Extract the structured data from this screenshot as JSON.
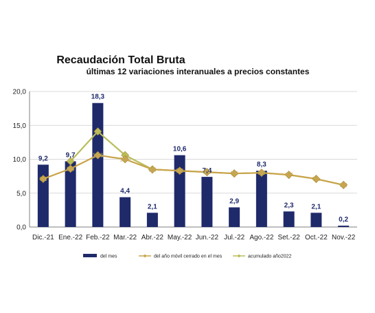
{
  "chart_data": {
    "type": "bar",
    "title": "Recaudación Total Bruta",
    "subtitle": "últimas 12 variaciones interanuales a precios constantes",
    "categories": [
      "Dic.-21",
      "Ene.-22",
      "Feb.-22",
      "Mar.-22",
      "Abr.-22",
      "May.-22",
      "Jun.-22",
      "Jul.-22",
      "Ago.-22",
      "Set.-22",
      "Oct.-22",
      "Nov.-22"
    ],
    "ylim": [
      0,
      20
    ],
    "yticks": [
      "0,0",
      "5,0",
      "10,0",
      "15,0",
      "20,0"
    ],
    "grid": true,
    "legend_position": "bottom",
    "series": [
      {
        "name": "del mes",
        "kind": "bar",
        "color": "#1f2a6b",
        "values": [
          9.2,
          9.7,
          18.3,
          4.4,
          2.1,
          10.6,
          7.4,
          2.9,
          8.3,
          2.3,
          2.1,
          0.2
        ],
        "labels": [
          "9,2",
          "9,7",
          "18,3",
          "4,4",
          "2,1",
          "10,6",
          "7,4",
          "2,9",
          "8,3",
          "2,3",
          "2,1",
          "0,2"
        ]
      },
      {
        "name": "del año móvil cerrado en el mes",
        "kind": "line",
        "color": "#c9a44a",
        "values": [
          7.1,
          8.6,
          10.6,
          10.0,
          8.5,
          8.3,
          8.1,
          7.9,
          8.0,
          7.7,
          7.1,
          6.2
        ],
        "labels": [
          "7,1",
          "8,6",
          "10,6",
          "10,0",
          "8,5",
          "8,3",
          "8,1",
          "7,9",
          "8,0",
          "7,7",
          "7,1",
          "6,2"
        ]
      },
      {
        "name": "acumulado año2022",
        "kind": "line",
        "color": "#b9bd5a",
        "values": [
          null,
          9.7,
          14.1,
          10.6,
          8.5,
          8.3,
          8.1,
          7.9,
          8.0,
          7.7,
          7.1,
          6.2
        ]
      }
    ]
  }
}
